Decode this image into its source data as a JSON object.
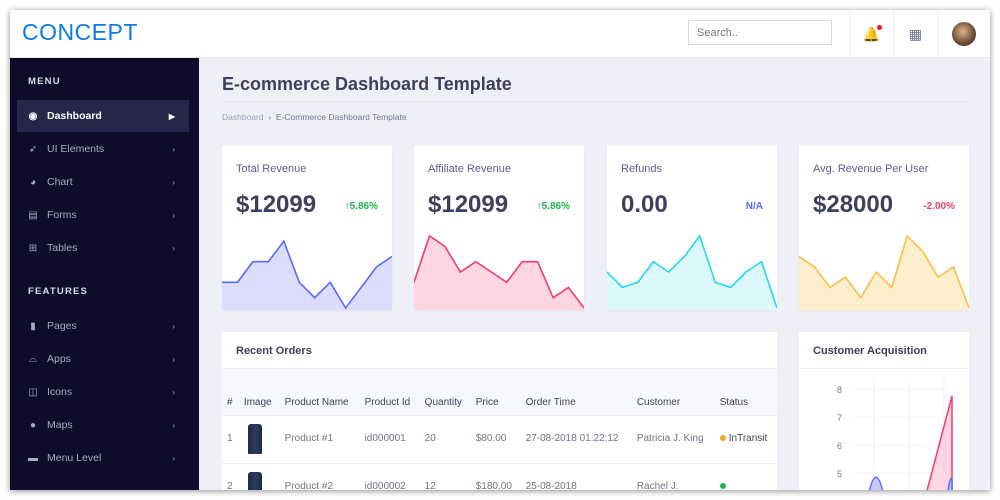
{
  "header": {
    "logo": "CONCEPT",
    "search_placeholder": "Search.."
  },
  "sidebar": {
    "menu_label": "MENU",
    "features_label": "FEATURES",
    "items": [
      {
        "label": "Dashboard",
        "icon": "user-circle-icon"
      },
      {
        "label": "UI Elements",
        "icon": "rocket-icon"
      },
      {
        "label": "Chart",
        "icon": "pie-chart-icon"
      },
      {
        "label": "Forms",
        "icon": "form-icon"
      },
      {
        "label": "Tables",
        "icon": "table-icon"
      }
    ],
    "features": [
      {
        "label": "Pages",
        "icon": "file-icon"
      },
      {
        "label": "Apps",
        "icon": "hdd-icon"
      },
      {
        "label": "Icons",
        "icon": "columns-icon"
      },
      {
        "label": "Maps",
        "icon": "map-marker-icon"
      },
      {
        "label": "Menu Level",
        "icon": "folder-icon"
      }
    ]
  },
  "page": {
    "title": "E-commerce Dashboard Template",
    "breadcrumb": [
      "Dashboard",
      "E-Commerce Dashboard Template"
    ]
  },
  "cards": [
    {
      "label": "Total Revenue",
      "value": "$12099",
      "change": "5.86%",
      "arrow": "↑",
      "change_color": "#22b14c",
      "line": "#5969ff",
      "fill": "#dcdcff",
      "spark": [
        5,
        5,
        9,
        9,
        13,
        5,
        2,
        5,
        0,
        4,
        8,
        10
      ]
    },
    {
      "label": "Affiliate Revenue",
      "value": "$12099",
      "change": "5.86%",
      "arrow": "↑",
      "change_color": "#22b14c",
      "line": "#ef3b6e",
      "fill": "#fdd6e1",
      "spark": [
        5,
        14,
        12,
        7,
        9,
        7,
        5,
        9,
        9,
        2,
        4,
        0
      ]
    },
    {
      "label": "Refunds",
      "value": "0.00",
      "change": "N/A",
      "arrow": "",
      "change_color": "#5969ff",
      "line": "#25d5f2",
      "fill": "#dcf8fd",
      "spark": [
        7,
        4,
        5,
        9,
        7,
        10,
        14,
        5,
        4,
        7,
        9,
        0
      ]
    },
    {
      "label": "Avg. Revenue Per User",
      "value": "$28000",
      "change": "-2.00%",
      "arrow": "",
      "change_color": "#ef3b6e",
      "line": "#f5c146",
      "fill": "#fdefcc",
      "spark": [
        10,
        8,
        4,
        6,
        2,
        7,
        4,
        14,
        11,
        6,
        8,
        0
      ]
    }
  ],
  "orders": {
    "title": "Recent Orders",
    "headers": [
      "#",
      "Image",
      "Product Name",
      "Product Id",
      "Quantity",
      "Price",
      "Order Time",
      "Customer",
      "Status"
    ],
    "rows": [
      [
        "1",
        "",
        "Product #1",
        "id000001",
        "20",
        "$80.00",
        "27-08-2018 01:22:12",
        "Patricia J. King",
        "InTransit"
      ],
      [
        "2",
        "",
        "Product #2",
        "id000002",
        "12",
        "$180.00",
        "25-08-2018",
        "Rachel J.",
        ""
      ]
    ],
    "status_colors": [
      "#f5a623",
      "#22b14c"
    ]
  },
  "acquisition": {
    "title": "Customer Acquisition",
    "y_ticks": [
      "8",
      "7",
      "6",
      "5"
    ]
  }
}
